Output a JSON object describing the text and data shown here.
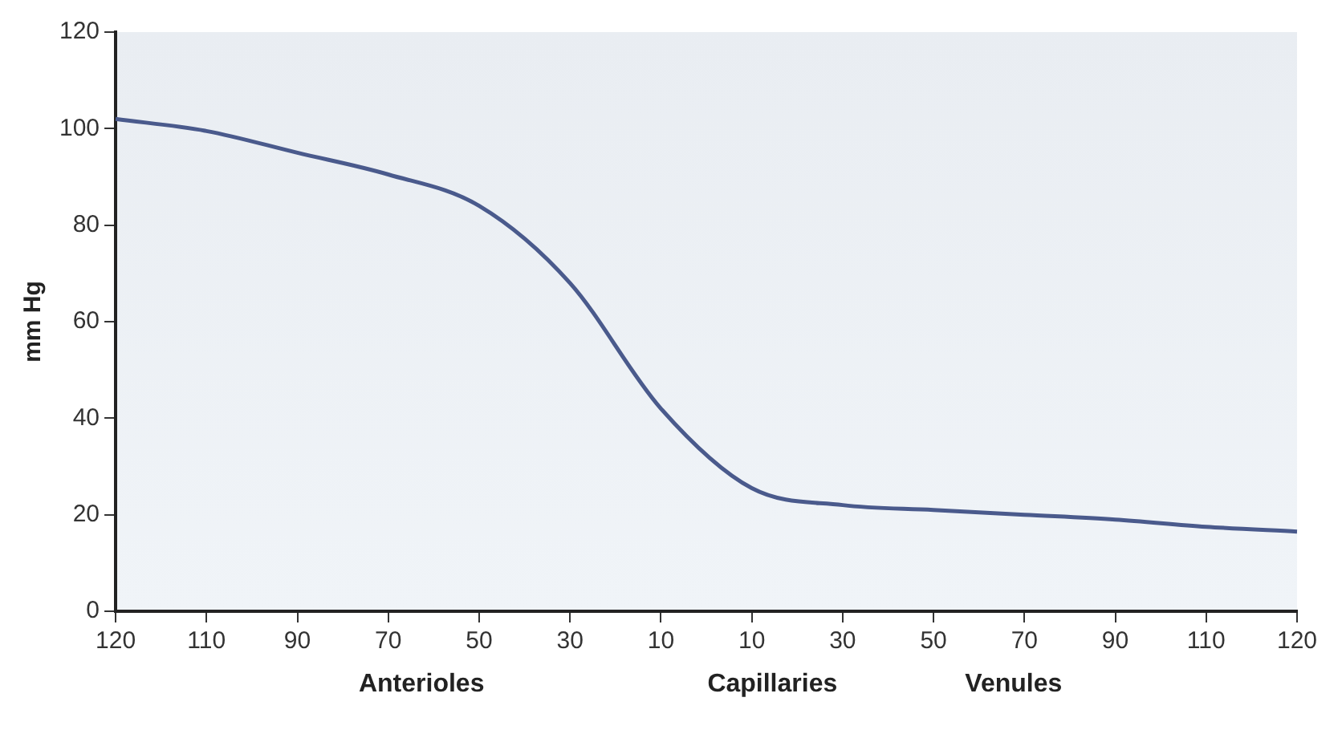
{
  "chart_data": {
    "type": "line",
    "ylabel": "mm Hg",
    "categories": [
      "120",
      "110",
      "90",
      "70",
      "50",
      "30",
      "10",
      "10",
      "30",
      "50",
      "70",
      "90",
      "110",
      "120"
    ],
    "values": [
      102,
      99.5,
      95,
      90.5,
      84,
      68,
      42,
      25.5,
      22,
      21,
      20,
      19,
      17.5,
      16.5
    ],
    "color": "#4a5a8c",
    "ylim": [
      0,
      120
    ],
    "yticks": [
      0,
      20,
      40,
      60,
      80,
      100,
      120
    ],
    "grid": false,
    "marker": "none",
    "line_style": "solid",
    "annotations": [
      "Anterioles",
      "Capillaries",
      "Venules"
    ]
  }
}
